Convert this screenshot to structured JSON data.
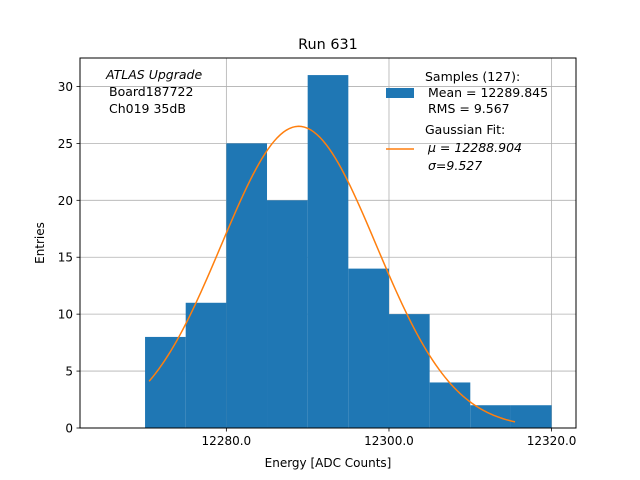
{
  "chart_data": {
    "type": "bar",
    "title": "Run 631",
    "xlabel": "Energy [ADC Counts]",
    "ylabel": "Entries",
    "xlim": [
      12262,
      12323
    ],
    "ylim": [
      0,
      32.5
    ],
    "x_ticks": [
      12280.0,
      12300.0,
      12320.0
    ],
    "x_tick_labels": [
      "12280.0",
      "12300.0",
      "12320.0"
    ],
    "y_ticks": [
      0,
      5,
      10,
      15,
      20,
      25,
      30
    ],
    "y_tick_labels": [
      "0",
      "5",
      "10",
      "15",
      "20",
      "25",
      "30"
    ],
    "grid": true,
    "annotation": {
      "lines": [
        "ATLAS Upgrade",
        "Board187722",
        "Ch019 35dB"
      ]
    },
    "legend": {
      "placement": "top-right",
      "histogram_lines": [
        "Samples (127):",
        "Mean = 12289.845",
        "RMS = 9.567"
      ],
      "fit_lines": [
        "Gaussian Fit:",
        "μ = 12288.904",
        "σ=9.527"
      ]
    },
    "histogram": {
      "color": "#1f77b4",
      "bin_edges": [
        12270,
        12275,
        12280,
        12285,
        12290,
        12295,
        12300,
        12305,
        12310,
        12315,
        12320
      ],
      "counts": [
        8,
        11,
        25,
        20,
        31,
        14,
        10,
        4,
        2,
        2
      ]
    },
    "fit": {
      "color": "#ff7f0e",
      "type": "gaussian",
      "mu": 12288.904,
      "sigma": 9.527,
      "amplitude": 26.5,
      "x_range": [
        12270.5,
        12315.5
      ]
    }
  }
}
